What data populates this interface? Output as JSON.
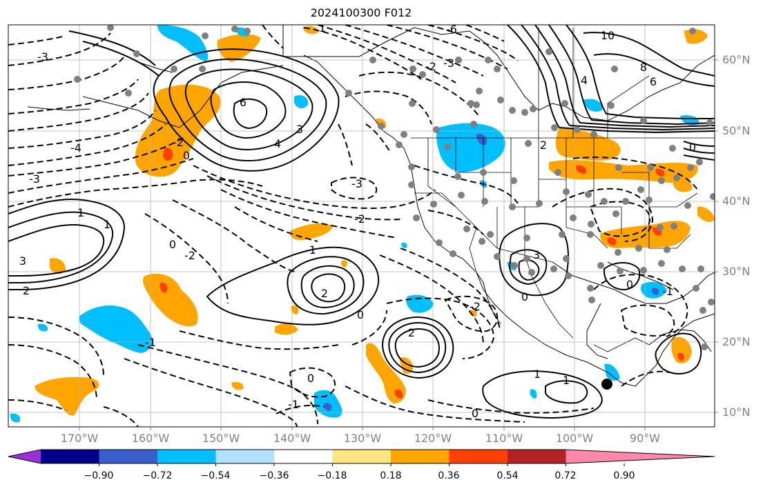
{
  "title": "2024100300 F012",
  "lat_labels": [
    "60°N",
    "50°N",
    "40°N",
    "30°N",
    "20°N",
    "10°N"
  ],
  "lon_labels": [
    "170°W",
    "160°W",
    "150°W",
    "140°W",
    "130°W",
    "120°W",
    "110°W",
    "100°W",
    "90°W"
  ],
  "colorbar": {
    "ticks": [
      "−0.90",
      "−0.72",
      "−0.54",
      "−0.36",
      "−0.18",
      "0.18",
      "0.36",
      "0.54",
      "0.72",
      "0.90"
    ],
    "colors": [
      "#9b30d9",
      "#00008b",
      "#3a5fcd",
      "#00bfff",
      "#b0e2ff",
      "#ffffff",
      "#ffe680",
      "#ffa500",
      "#ff4000",
      "#b22222",
      "#ff88aa"
    ]
  },
  "contour_labels": [
    "-3",
    "1",
    "-6",
    "10",
    "8",
    "6",
    "4",
    "-2",
    "2",
    "-3",
    "6",
    "3",
    "4",
    "-2",
    "-4",
    "0",
    "-3",
    "-3",
    "1",
    "0",
    "3",
    "1",
    "-2",
    "2",
    "-2",
    "2",
    "-1",
    "0",
    "2",
    "-2",
    "0",
    "3",
    "-1",
    "0",
    "1",
    "-1",
    "0",
    "-1",
    "0",
    "1",
    "0"
  ]
}
